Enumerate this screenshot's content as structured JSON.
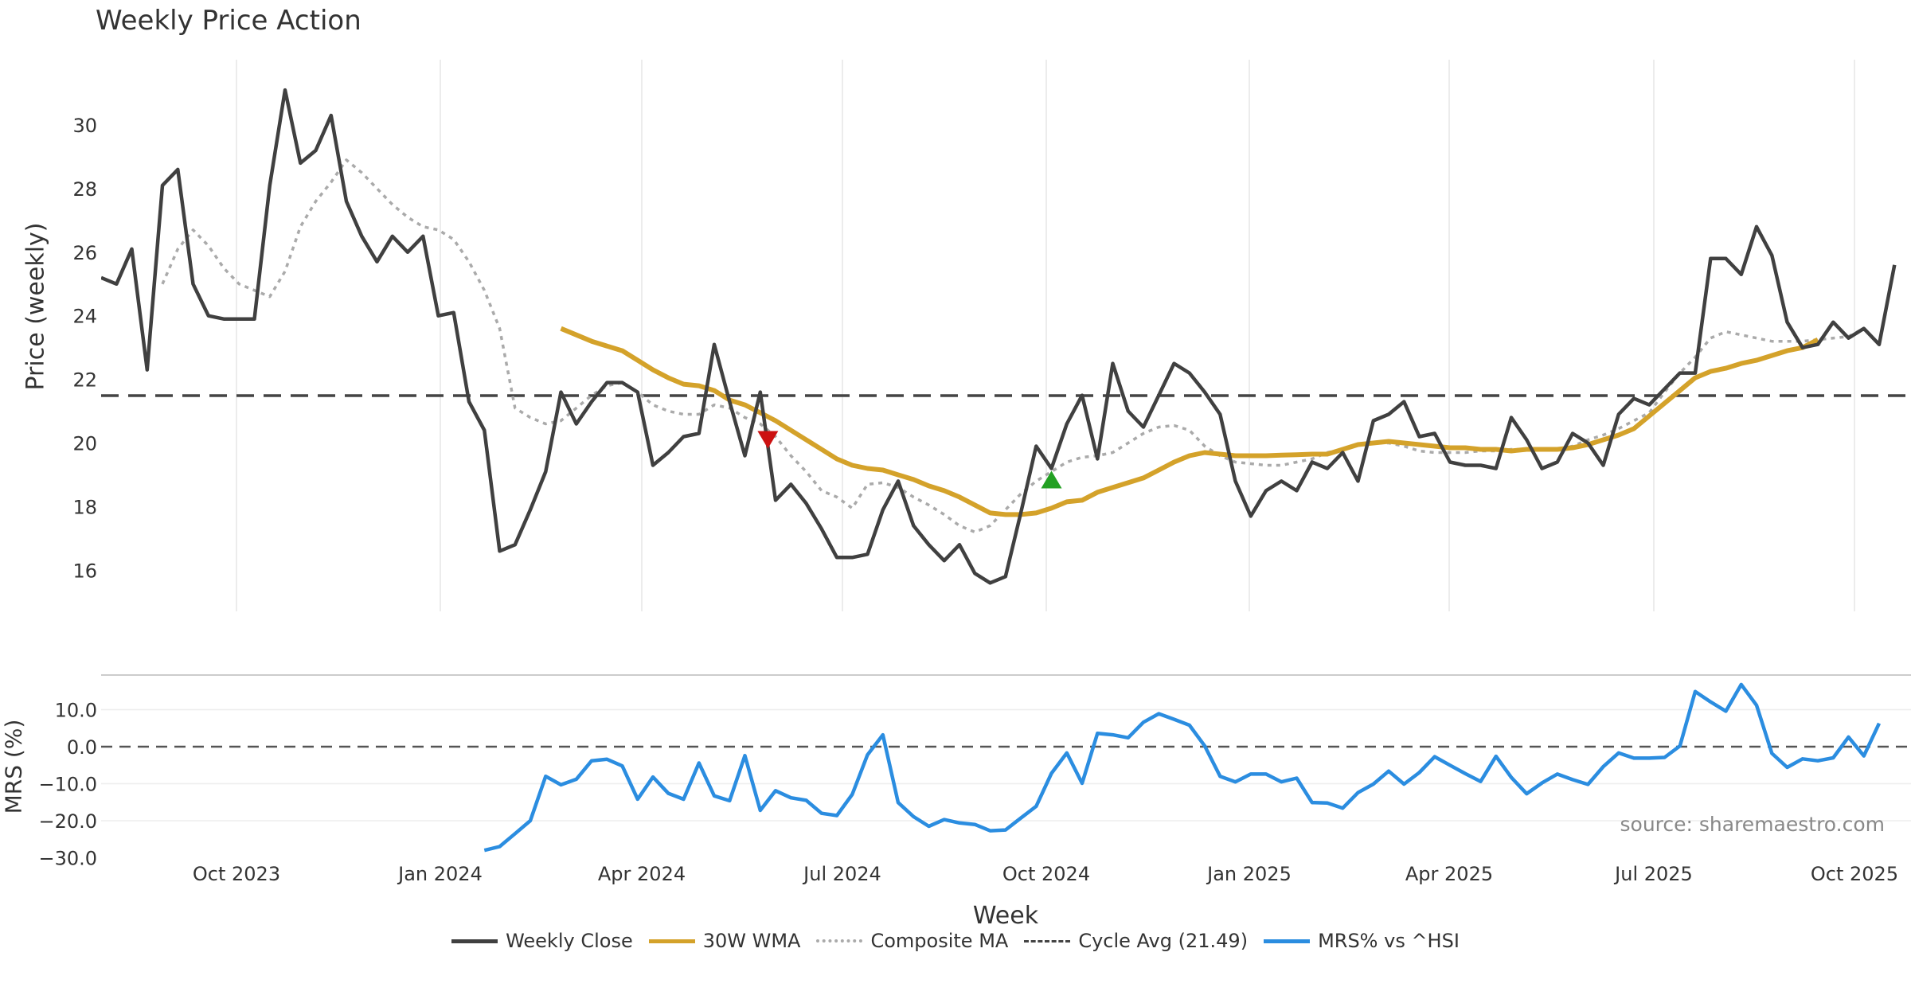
{
  "title": "Weekly Price Action",
  "source": "source: sharemaestro.com",
  "legend": {
    "weekly_close": "Weekly Close",
    "wma": "30W WMA",
    "composite": "Composite MA",
    "cycle_avg": "Cycle Avg (21.49)",
    "mrs": "MRS% vs ^HSI"
  },
  "colors": {
    "close": "#404040",
    "wma": "#d4a22a",
    "composite": "#aaaaaa",
    "cycle": "#444444",
    "mrs": "#2b8de0",
    "sell_marker": "#cc1111",
    "buy_marker": "#22a022"
  },
  "chart_data": [
    {
      "type": "line",
      "title": "Weekly Price Action",
      "ylabel": "Price (weekly)",
      "xlabel": "Week",
      "ylim": [
        14.7,
        32.2
      ],
      "yticks": [
        16,
        18,
        20,
        22,
        24,
        26,
        28,
        30
      ],
      "xticks": [
        "Oct 2023",
        "Jan 2024",
        "Apr 2024",
        "Jul 2024",
        "Oct 2024",
        "Jan 2025",
        "Apr 2025",
        "Jul 2025",
        "Oct 2025"
      ],
      "x_weeks_start": 0,
      "series": [
        {
          "name": "Weekly Close",
          "start": 0,
          "values": [
            25.2,
            25.0,
            26.1,
            22.3,
            28.1,
            28.6,
            25.0,
            24.0,
            23.9,
            23.9,
            23.9,
            28.1,
            31.1,
            28.8,
            29.2,
            30.3,
            27.6,
            26.5,
            25.7,
            26.5,
            26.0,
            26.5,
            24.0,
            24.1,
            21.3,
            20.4,
            16.6,
            16.8,
            17.9,
            19.1,
            21.6,
            20.6,
            21.3,
            21.9,
            21.9,
            21.6,
            19.3,
            19.7,
            20.2,
            20.3,
            23.1,
            21.3,
            19.6,
            21.6,
            18.2,
            18.7,
            18.1,
            17.3,
            16.4,
            16.4,
            16.5,
            17.9,
            18.8,
            17.4,
            16.8,
            16.3,
            16.8,
            15.9,
            15.6,
            15.8,
            17.8,
            19.9,
            19.2,
            20.6,
            21.5,
            19.5,
            22.5,
            21.0,
            20.5,
            21.5,
            22.5,
            22.2,
            21.6,
            20.9,
            18.8,
            17.7,
            18.5,
            18.8,
            18.5,
            19.4,
            19.2,
            19.7,
            18.8,
            20.7,
            20.9,
            21.3,
            20.2,
            20.3,
            19.4,
            19.3,
            19.3,
            19.2,
            20.8,
            20.1,
            19.2,
            19.4,
            20.3,
            20.0,
            19.3,
            20.9,
            21.4,
            21.2,
            21.7,
            22.2,
            22.2,
            25.8,
            25.8,
            25.3,
            26.8,
            25.9,
            23.8,
            23.0,
            23.1,
            23.8,
            23.3,
            23.6,
            23.1,
            25.6
          ]
        },
        {
          "name": "30W WMA",
          "start": 30,
          "values": [
            23.6,
            23.4,
            23.2,
            23.05,
            22.9,
            22.6,
            22.3,
            22.05,
            21.85,
            21.8,
            21.65,
            21.35,
            21.2,
            20.95,
            20.7,
            20.4,
            20.1,
            19.8,
            19.5,
            19.3,
            19.2,
            19.15,
            19.0,
            18.85,
            18.65,
            18.5,
            18.3,
            18.05,
            17.8,
            17.75,
            17.75,
            17.8,
            17.95,
            18.15,
            18.2,
            18.45,
            18.6,
            18.75,
            18.9,
            19.15,
            19.4,
            19.6,
            19.7,
            19.65,
            19.6,
            19.6,
            19.6,
            19.62,
            19.63,
            19.65,
            19.65,
            19.8,
            19.95,
            20.0,
            20.05,
            20.0,
            19.95,
            19.9,
            19.85,
            19.85,
            19.8,
            19.8,
            19.75,
            19.8,
            19.8,
            19.8,
            19.85,
            19.95,
            20.1,
            20.25,
            20.45,
            20.85,
            21.25,
            21.65,
            22.05,
            22.25,
            22.35,
            22.5,
            22.6,
            22.75,
            22.9,
            23.0,
            23.25
          ]
        },
        {
          "name": "Composite MA",
          "start": 4,
          "values": [
            25.0,
            26.1,
            26.7,
            26.2,
            25.5,
            25.0,
            24.8,
            24.6,
            25.4,
            26.8,
            27.6,
            28.2,
            28.9,
            28.5,
            28.0,
            27.5,
            27.1,
            26.8,
            26.7,
            26.4,
            25.7,
            24.8,
            23.6,
            21.1,
            20.8,
            20.6,
            20.7,
            21.1,
            21.5,
            21.8,
            21.9,
            21.6,
            21.2,
            21.0,
            20.9,
            20.9,
            21.2,
            21.1,
            20.8,
            20.6,
            20.2,
            19.6,
            19.1,
            18.5,
            18.3,
            17.95,
            18.7,
            18.75,
            18.6,
            18.3,
            18.05,
            17.75,
            17.4,
            17.2,
            17.4,
            17.9,
            18.4,
            18.8,
            19.1,
            19.4,
            19.55,
            19.6,
            19.7,
            20.0,
            20.3,
            20.5,
            20.55,
            20.4,
            19.9,
            19.6,
            19.4,
            19.35,
            19.3,
            19.3,
            19.4,
            19.5,
            19.7,
            19.8,
            19.95,
            20.0,
            20.0,
            19.9,
            19.75,
            19.7,
            19.7,
            19.7,
            19.75,
            19.75,
            19.8,
            19.8,
            19.8,
            19.8,
            19.9,
            20.1,
            20.25,
            20.45,
            20.7,
            20.95,
            21.6,
            22.2,
            22.7,
            23.3,
            23.5,
            23.4,
            23.3,
            23.2,
            23.2,
            23.2,
            23.25,
            23.3,
            23.35,
            23.6
          ]
        }
      ],
      "reference_line": {
        "name": "Cycle Avg",
        "value": 21.49
      },
      "markers": [
        {
          "type": "sell",
          "x": 43.5,
          "y": 20.1
        },
        {
          "type": "buy",
          "x": 62,
          "y": 18.85
        }
      ]
    },
    {
      "type": "line",
      "ylabel": "MRS (%)",
      "ylim": [
        -30.0,
        18.0
      ],
      "yticks": [
        "10.0",
        "0.0",
        "−10.0",
        "−20.0",
        "−30.0"
      ],
      "reference_line": {
        "value": 0
      },
      "series": [
        {
          "name": "MRS% vs ^HSI",
          "start": 25,
          "values": [
            -28.0,
            -27.0,
            -23.5,
            -20.0,
            -8.0,
            -10.3,
            -8.8,
            -3.8,
            -3.4,
            -5.2,
            -14.2,
            -8.2,
            -12.6,
            -14.2,
            -4.4,
            -13.3,
            -14.6,
            -2.4,
            -17.2,
            -11.9,
            -13.8,
            -14.5,
            -18.0,
            -18.6,
            -12.9,
            -2.2,
            3.2,
            -15.1,
            -18.9,
            -21.5,
            -19.7,
            -20.6,
            -21.0,
            -22.7,
            -22.5,
            -19.3,
            -16.1,
            -7.2,
            -1.7,
            -9.9,
            3.6,
            3.2,
            2.4,
            6.6,
            8.9,
            7.4,
            5.8,
            0.2,
            -8.0,
            -9.5,
            -7.4,
            -7.4,
            -9.5,
            -8.5,
            -15.1,
            -15.2,
            -16.6,
            -12.4,
            -10.1,
            -6.6,
            -10.1,
            -7.0,
            -2.7,
            -5.0,
            -7.3,
            -9.4,
            -2.6,
            -8.3,
            -12.7,
            -9.8,
            -7.4,
            -8.9,
            -10.2,
            -5.4,
            -1.7,
            -3.1,
            -3.1,
            -2.9,
            0.2,
            14.9,
            12.1,
            9.6,
            16.8,
            11.2,
            -1.8,
            -5.6,
            -3.3,
            -3.8,
            -3.0,
            2.6,
            -2.5,
            6.3
          ]
        }
      ]
    }
  ]
}
